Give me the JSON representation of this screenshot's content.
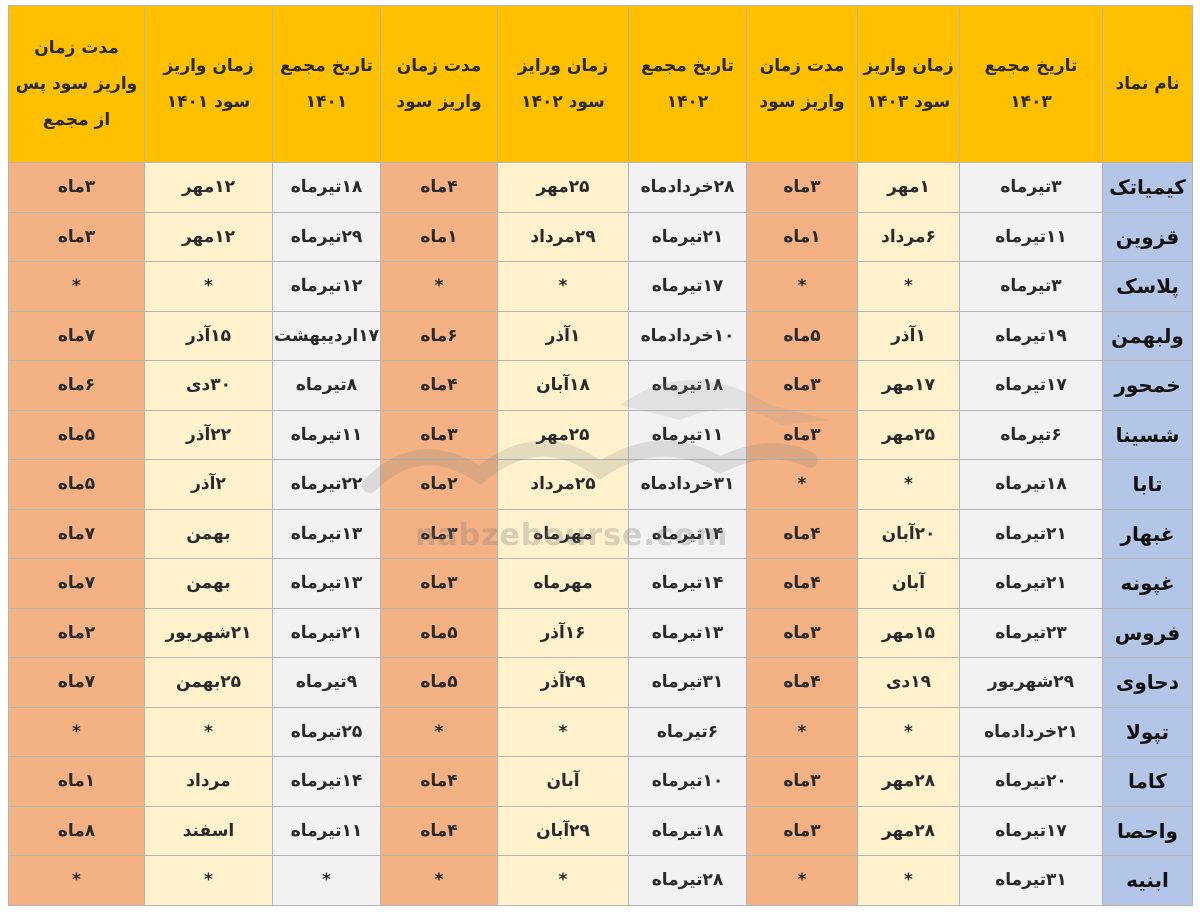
{
  "headers": [
    "نام نماد",
    "تاریخ مجمع ۱۴۰۳",
    "زمان واریز سود ۱۴۰۳",
    "مدت زمان واریز سود",
    "تاریخ مجمع ۱۴۰۲",
    "زمان ورایز سود ۱۴۰۲",
    "مدت زمان واریز سود",
    "تاریخ مجمع ۱۴۰۱",
    "زمان واریز سود ۱۴۰۱",
    "مدت زمان واریز سود پس از مجمع"
  ],
  "rows": [
    [
      "کیمیاتک",
      "۳تیرماه",
      "۱مهر",
      "۳ماه",
      "۲۸خردادماه",
      "۲۵مهر",
      "۴ماه",
      "۱۸تیرماه",
      "۱۲مهر",
      "۳ماه"
    ],
    [
      "قزوین",
      "۱۱تیرماه",
      "۶مرداد",
      "۱ماه",
      "۲۱تیرماه",
      "۲۹مرداد",
      "۱ماه",
      "۲۹تیرماه",
      "۱۲مهر",
      "۳ماه"
    ],
    [
      "پلاسک",
      "۳تیرماه",
      "*",
      "*",
      "۱۷تیرماه",
      "*",
      "*",
      "۱۲تیرماه",
      "*",
      "*"
    ],
    [
      "ولبهمن",
      "۱۹تیرماه",
      "۱آذر",
      "۵ماه",
      "۱۰خردادماه",
      "۱آذر",
      "۶ماه",
      "۱۷اردیبهشت",
      "۱۵آذر",
      "۷ماه"
    ],
    [
      "خمحور",
      "۱۷تیرماه",
      "۱۷مهر",
      "۳ماه",
      "۱۸تیرماه",
      "۱۸آبان",
      "۴ماه",
      "۸تیرماه",
      "۳۰دی",
      "۶ماه"
    ],
    [
      "شسینا",
      "۶تیرماه",
      "۲۵مهر",
      "۳ماه",
      "۱۱تیرماه",
      "۲۵مهر",
      "۳ماه",
      "۱۱تیرماه",
      "۲۲آذر",
      "۵ماه"
    ],
    [
      "تابا",
      "۱۸تیرماه",
      "*",
      "*",
      "۳۱خردادماه",
      "۲۵مرداد",
      "۲ماه",
      "۲۲تیرماه",
      "۲آذر",
      "۵ماه"
    ],
    [
      "غبهار",
      "۲۱تیرماه",
      "۲۰آبان",
      "۴ماه",
      "۱۴تیرماه",
      "مهرماه",
      "۳ماه",
      "۱۳تیرماه",
      "بهمن",
      "۷ماه"
    ],
    [
      "غپونه",
      "۲۱تیرماه",
      "آبان",
      "۴ماه",
      "۱۴تیرماه",
      "مهرماه",
      "۳ماه",
      "۱۳تیرماه",
      "بهمن",
      "۷ماه"
    ],
    [
      "فروس",
      "۲۳تیرماه",
      "۱۵مهر",
      "۳ماه",
      "۱۳تیرماه",
      "۱۶آذر",
      "۵ماه",
      "۲۱تیرماه",
      "۲۱شهریور",
      "۲ماه"
    ],
    [
      "دحاوی",
      "۲۹شهریور",
      "۱۹دی",
      "۴ماه",
      "۳۱تیرماه",
      "۲۹آذر",
      "۵ماه",
      "۹تیرماه",
      "۲۵بهمن",
      "۷ماه"
    ],
    [
      "تپولا",
      "۲۱خردادماه",
      "*",
      "*",
      "۶تیرماه",
      "*",
      "*",
      "۲۵تیرماه",
      "*",
      "*"
    ],
    [
      "کاما",
      "۲۰تیرماه",
      "۲۸مهر",
      "۳ماه",
      "۱۰تیرماه",
      "آبان",
      "۴ماه",
      "۱۴تیرماه",
      "مرداد",
      "۱ماه"
    ],
    [
      "واحصا",
      "۱۷تیرماه",
      "۲۸مهر",
      "۳ماه",
      "۱۸تیرماه",
      "۲۹آبان",
      "۴ماه",
      "۱۱تیرماه",
      "اسفند",
      "۸ماه"
    ],
    [
      "ابنیه",
      "۳۱تیرماه",
      "*",
      "*",
      "۲۸تیرماه",
      "*",
      "*",
      "*",
      "*",
      "*"
    ]
  ],
  "watermark": "nabzebourse.com",
  "colors": {
    "header": "#ffc000",
    "symbol": "#b4c6e7",
    "date": "#f2f2f2",
    "pay": "#fff2cc",
    "duration": "#f4b183"
  }
}
